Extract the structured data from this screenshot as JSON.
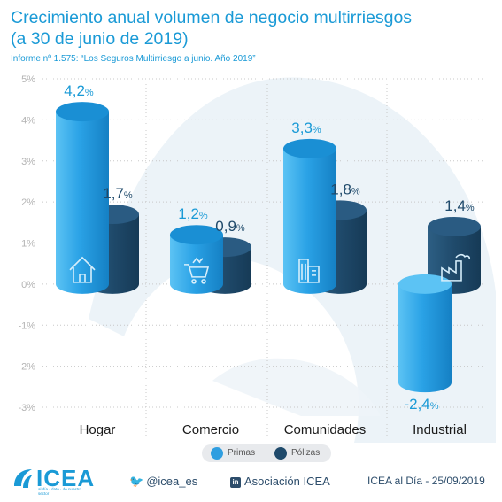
{
  "header": {
    "title_line1": "Crecimiento anual volumen de negocio multirriesgos",
    "title_line2": "(a 30 de junio de 2019)",
    "subtitle": "Informe nº 1.575: “Los Seguros Multirriesgo a junio. Año 2019”"
  },
  "chart_data": {
    "type": "bar",
    "categories": [
      "Hogar",
      "Comercio",
      "Comunidades",
      "Industrial"
    ],
    "series": [
      {
        "name": "Primas",
        "values": [
          4.2,
          1.2,
          3.3,
          -2.4
        ],
        "labels": [
          "4,2",
          "1,2",
          "3,3",
          "-2,4"
        ],
        "color": "#2f9ee0"
      },
      {
        "name": "Pólizas",
        "values": [
          1.7,
          0.9,
          1.8,
          1.4
        ],
        "labels": [
          "1,7",
          "0,9",
          "1,8",
          "1,4"
        ],
        "color": "#1f4a6b"
      }
    ],
    "ylim": [
      -3,
      5
    ],
    "yticks": [
      5,
      4,
      3,
      2,
      1,
      0,
      -1,
      -2,
      -3
    ],
    "ytick_labels": [
      "5%",
      "4%",
      "3%",
      "2%",
      "1%",
      "0%",
      "-1%",
      "-2%",
      "-3%"
    ],
    "value_suffix": "%",
    "category_icons": [
      "house-icon",
      "shopping-cart-icon",
      "building-icon",
      "factory-icon"
    ],
    "grid": true,
    "legend_position": "bottom-center"
  },
  "legend": {
    "primas": "Primas",
    "polizas": "Pólizas"
  },
  "footer": {
    "logo_text": "ICEA",
    "logo_tagline": "al día · dato · de nuestro sector",
    "twitter": "@icea_es",
    "linkedin_badge": "in",
    "linkedin": "Asociación ICEA",
    "date": "ICEA al Día - 25/09/2019"
  },
  "colors": {
    "accent": "#1a9ad6",
    "primas_light": "#3fb1ee",
    "polizas_dark": "#1f4a6b",
    "axis_text": "#b3b3b3"
  }
}
